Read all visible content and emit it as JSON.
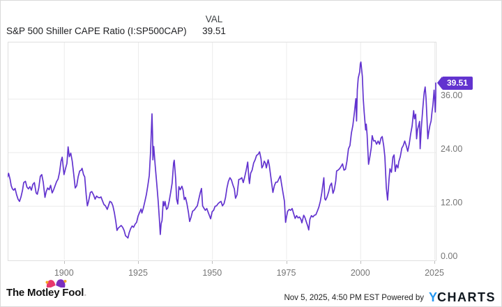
{
  "header": {
    "title": "S&P 500 Shiller CAPE Ratio (I:SP500CAP)",
    "val_label": "VAL",
    "val_value": "39.51"
  },
  "chart_data": {
    "type": "line",
    "title": "S&P 500 Shiller CAPE Ratio",
    "series_name": "I:SP500CAP",
    "line_color": "#6233cf",
    "grid": true,
    "legend_position": "none",
    "xlim": [
      1881,
      2025.9
    ],
    "ylim": [
      0,
      48.8
    ],
    "x_tick_labels": [
      "1900",
      "1925",
      "1950",
      "1975",
      "2000",
      "2025"
    ],
    "x_tick_values": [
      1900,
      1925,
      1950,
      1975,
      2000,
      2025
    ],
    "y_tick_labels": [
      "0.00",
      "12.00",
      "24.00",
      "36.00"
    ],
    "y_tick_values": [
      0,
      12,
      24,
      36
    ],
    "last_value_label": "39.51",
    "last_value": 39.51,
    "points": [
      [
        1881,
        18.5
      ],
      [
        1881.3,
        19.3
      ],
      [
        1881.8,
        18
      ],
      [
        1882.2,
        16.5
      ],
      [
        1882.6,
        15.8
      ],
      [
        1883,
        15.5
      ],
      [
        1883.5,
        15.9
      ],
      [
        1884,
        14.5
      ],
      [
        1884.5,
        13.5
      ],
      [
        1885,
        13
      ],
      [
        1885.5,
        14
      ],
      [
        1886,
        15.5
      ],
      [
        1886.4,
        17.2
      ],
      [
        1887,
        17.5
      ],
      [
        1887.5,
        16.2
      ],
      [
        1888,
        15.8
      ],
      [
        1888.5,
        16.3
      ],
      [
        1889,
        15.5
      ],
      [
        1889.5,
        16.8
      ],
      [
        1890,
        17.2
      ],
      [
        1890.6,
        14.9
      ],
      [
        1891,
        14.6
      ],
      [
        1891.5,
        16
      ],
      [
        1892,
        18.6
      ],
      [
        1892.5,
        19
      ],
      [
        1893,
        17.3
      ],
      [
        1893.6,
        13.9
      ],
      [
        1894,
        15.2
      ],
      [
        1894.5,
        16
      ],
      [
        1895,
        15.6
      ],
      [
        1895.5,
        16.6
      ],
      [
        1896,
        14.9
      ],
      [
        1896.5,
        15.6
      ],
      [
        1897,
        16.5
      ],
      [
        1897.5,
        17.4
      ],
      [
        1898,
        18
      ],
      [
        1898.5,
        19.5
      ],
      [
        1899,
        22
      ],
      [
        1899.4,
        22.9
      ],
      [
        1900,
        19
      ],
      [
        1900.5,
        20.3
      ],
      [
        1901,
        21.5
      ],
      [
        1901.4,
        25.2
      ],
      [
        1901.8,
        23
      ],
      [
        1902.3,
        23.8
      ],
      [
        1902.8,
        22
      ],
      [
        1903.3,
        19
      ],
      [
        1903.8,
        16
      ],
      [
        1904.3,
        16.5
      ],
      [
        1904.8,
        18.5
      ],
      [
        1905.3,
        19.8
      ],
      [
        1905.8,
        20
      ],
      [
        1906.1,
        20.4
      ],
      [
        1906.6,
        19
      ],
      [
        1907,
        18.5
      ],
      [
        1907.5,
        14.5
      ],
      [
        1907.9,
        12
      ],
      [
        1908.3,
        13
      ],
      [
        1908.9,
        15
      ],
      [
        1909.4,
        15.2
      ],
      [
        1910,
        14.4
      ],
      [
        1910.5,
        13.5
      ],
      [
        1911,
        14.2
      ],
      [
        1911.5,
        13.9
      ],
      [
        1912,
        13.8
      ],
      [
        1912.5,
        14
      ],
      [
        1913,
        13.1
      ],
      [
        1913.5,
        12.3
      ],
      [
        1914,
        12
      ],
      [
        1914.6,
        11.2
      ],
      [
        1915,
        12
      ],
      [
        1915.5,
        13
      ],
      [
        1916,
        12.8
      ],
      [
        1916.5,
        12
      ],
      [
        1917,
        10.5
      ],
      [
        1917.5,
        8.5
      ],
      [
        1917.9,
        6.5
      ],
      [
        1918.3,
        7
      ],
      [
        1918.8,
        7.3
      ],
      [
        1919.3,
        7.6
      ],
      [
        1919.8,
        7.2
      ],
      [
        1920.3,
        6.5
      ],
      [
        1920.8,
        5.3
      ],
      [
        1921.3,
        5
      ],
      [
        1921.6,
        4.8
      ],
      [
        1922,
        6
      ],
      [
        1922.5,
        6.9
      ],
      [
        1923,
        7.5
      ],
      [
        1923.5,
        7.2
      ],
      [
        1924,
        7.9
      ],
      [
        1924.5,
        8.3
      ],
      [
        1925,
        9.7
      ],
      [
        1925.5,
        10.5
      ],
      [
        1926,
        11.3
      ],
      [
        1926.3,
        10.4
      ],
      [
        1926.8,
        11.5
      ],
      [
        1927.3,
        13
      ],
      [
        1927.8,
        14.5
      ],
      [
        1928.3,
        16.5
      ],
      [
        1928.8,
        18.8
      ],
      [
        1929.2,
        24
      ],
      [
        1929.7,
        32.6
      ],
      [
        1929.9,
        28
      ],
      [
        1930,
        22.3
      ],
      [
        1930.3,
        25.3
      ],
      [
        1930.8,
        21
      ],
      [
        1931.3,
        17
      ],
      [
        1931.8,
        13
      ],
      [
        1932.2,
        9
      ],
      [
        1932.5,
        5.6
      ],
      [
        1932.8,
        8
      ],
      [
        1933.1,
        8.7
      ],
      [
        1933.5,
        13
      ],
      [
        1933.8,
        12
      ],
      [
        1934.1,
        13
      ],
      [
        1934.6,
        11.2
      ],
      [
        1935,
        11.5
      ],
      [
        1935.5,
        13
      ],
      [
        1936,
        15
      ],
      [
        1936.5,
        17.1
      ],
      [
        1937,
        21.6
      ],
      [
        1937.2,
        22.2
      ],
      [
        1937.7,
        18
      ],
      [
        1938,
        13.5
      ],
      [
        1938.4,
        12.4
      ],
      [
        1938.8,
        16.3
      ],
      [
        1939.2,
        15.6
      ],
      [
        1939.8,
        16.4
      ],
      [
        1940.2,
        15.5
      ],
      [
        1940.6,
        13.4
      ],
      [
        1941,
        13.9
      ],
      [
        1941.5,
        12.5
      ],
      [
        1942,
        10.5
      ],
      [
        1942.4,
        8.5
      ],
      [
        1942.9,
        9.5
      ],
      [
        1943.4,
        10.8
      ],
      [
        1944,
        11.1
      ],
      [
        1944.5,
        11.6
      ],
      [
        1945,
        12
      ],
      [
        1945.5,
        13.5
      ],
      [
        1946,
        15
      ],
      [
        1946.4,
        15.9
      ],
      [
        1946.8,
        12
      ],
      [
        1947.2,
        11.5
      ],
      [
        1947.7,
        11
      ],
      [
        1948.2,
        11.4
      ],
      [
        1948.7,
        10.5
      ],
      [
        1949.2,
        9.6
      ],
      [
        1949.5,
        9.1
      ],
      [
        1950,
        10.7
      ],
      [
        1950.5,
        11
      ],
      [
        1951,
        11.9
      ],
      [
        1951.5,
        12
      ],
      [
        1952,
        12.5
      ],
      [
        1952.5,
        12.8
      ],
      [
        1953,
        13
      ],
      [
        1953.5,
        12
      ],
      [
        1954,
        12.5
      ],
      [
        1954.5,
        13.8
      ],
      [
        1955,
        16
      ],
      [
        1955.5,
        17.5
      ],
      [
        1956,
        18.3
      ],
      [
        1956.5,
        17.8
      ],
      [
        1957,
        16.7
      ],
      [
        1957.5,
        15.8
      ],
      [
        1957.9,
        13.7
      ],
      [
        1958.4,
        14.5
      ],
      [
        1959,
        17.9
      ],
      [
        1959.5,
        18
      ],
      [
        1960,
        18.3
      ],
      [
        1960.5,
        17.2
      ],
      [
        1961,
        18.5
      ],
      [
        1961.5,
        20
      ],
      [
        1962,
        21.8
      ],
      [
        1962.4,
        18
      ],
      [
        1962.6,
        17
      ],
      [
        1963,
        19.3
      ],
      [
        1963.5,
        20
      ],
      [
        1964,
        21.6
      ],
      [
        1964.5,
        22.3
      ],
      [
        1965,
        23.3
      ],
      [
        1965.5,
        23.5
      ],
      [
        1966,
        24.1
      ],
      [
        1966.5,
        22.5
      ],
      [
        1966.8,
        20.5
      ],
      [
        1967.2,
        21
      ],
      [
        1967.6,
        22
      ],
      [
        1968,
        21.5
      ],
      [
        1968.3,
        20.5
      ],
      [
        1968.9,
        22.3
      ],
      [
        1969.3,
        21
      ],
      [
        1969.8,
        18.5
      ],
      [
        1970.2,
        16.5
      ],
      [
        1970.5,
        15
      ],
      [
        1971,
        16.5
      ],
      [
        1971.5,
        17.3
      ],
      [
        1972,
        17.3
      ],
      [
        1972.5,
        18
      ],
      [
        1973,
        18.7
      ],
      [
        1973.4,
        17
      ],
      [
        1973.9,
        15
      ],
      [
        1974.4,
        13
      ],
      [
        1974.8,
        8.3
      ],
      [
        1975.1,
        9.5
      ],
      [
        1975.5,
        10.8
      ],
      [
        1976,
        11.2
      ],
      [
        1976.5,
        11
      ],
      [
        1977,
        11.4
      ],
      [
        1977.5,
        10.3
      ],
      [
        1978,
        9.2
      ],
      [
        1978.5,
        9.8
      ],
      [
        1979,
        9.3
      ],
      [
        1979.5,
        9.5
      ],
      [
        1980,
        8.9
      ],
      [
        1980.3,
        8.2
      ],
      [
        1980.9,
        9.9
      ],
      [
        1981.3,
        9.4
      ],
      [
        1981.8,
        8.4
      ],
      [
        1982.3,
        7.4
      ],
      [
        1982.6,
        6.6
      ],
      [
        1983,
        9
      ],
      [
        1983.5,
        9.8
      ],
      [
        1984,
        9.5
      ],
      [
        1984.5,
        9.9
      ],
      [
        1985,
        10
      ],
      [
        1985.5,
        10.8
      ],
      [
        1986,
        11.7
      ],
      [
        1986.5,
        13
      ],
      [
        1987,
        14.9
      ],
      [
        1987.7,
        18.3
      ],
      [
        1988,
        13.6
      ],
      [
        1988.3,
        13.3
      ],
      [
        1988.8,
        14
      ],
      [
        1989.3,
        15.1
      ],
      [
        1989.8,
        16.5
      ],
      [
        1990.3,
        17.1
      ],
      [
        1990.8,
        14.8
      ],
      [
        1991.2,
        15.6
      ],
      [
        1991.7,
        17.5
      ],
      [
        1992,
        19.8
      ],
      [
        1992.5,
        20
      ],
      [
        1993,
        20.3
      ],
      [
        1993.5,
        20.8
      ],
      [
        1994,
        21.4
      ],
      [
        1994.5,
        20
      ],
      [
        1995,
        20.2
      ],
      [
        1995.5,
        22
      ],
      [
        1996,
        24.8
      ],
      [
        1996.5,
        25.5
      ],
      [
        1997,
        28.3
      ],
      [
        1997.5,
        30
      ],
      [
        1998,
        32.9
      ],
      [
        1998.5,
        36
      ],
      [
        1998.75,
        31
      ],
      [
        1999,
        38
      ],
      [
        1999.3,
        40.6
      ],
      [
        1999.8,
        42
      ],
      [
        2000,
        43.8
      ],
      [
        2000.2,
        44.2
      ],
      [
        2000.7,
        41
      ],
      [
        2001,
        36
      ],
      [
        2001.3,
        33
      ],
      [
        2001.8,
        29
      ],
      [
        2002,
        30.3
      ],
      [
        2002.3,
        28
      ],
      [
        2002.8,
        21.3
      ],
      [
        2003.2,
        22.9
      ],
      [
        2003.7,
        25
      ],
      [
        2004,
        27.7
      ],
      [
        2004.5,
        26.5
      ],
      [
        2005,
        26.6
      ],
      [
        2005.5,
        25.8
      ],
      [
        2006,
        26.5
      ],
      [
        2006.5,
        25.8
      ],
      [
        2007,
        27.2
      ],
      [
        2007.4,
        27.5
      ],
      [
        2007.9,
        25.5
      ],
      [
        2008.3,
        23
      ],
      [
        2008.8,
        16
      ],
      [
        2009.2,
        13.3
      ],
      [
        2009.7,
        18
      ],
      [
        2010,
        20.3
      ],
      [
        2010.5,
        19.5
      ],
      [
        2011,
        22.9
      ],
      [
        2011.4,
        23.4
      ],
      [
        2011.8,
        19.7
      ],
      [
        2012.2,
        21.2
      ],
      [
        2012.7,
        20.5
      ],
      [
        2013,
        21.9
      ],
      [
        2013.5,
        23
      ],
      [
        2014,
        24.9
      ],
      [
        2014.5,
        25.5
      ],
      [
        2015,
        26.5
      ],
      [
        2015.5,
        25.5
      ],
      [
        2016,
        24.2
      ],
      [
        2016.5,
        25.8
      ],
      [
        2017,
        28.1
      ],
      [
        2017.5,
        29.9
      ],
      [
        2018,
        33.3
      ],
      [
        2018.3,
        31.5
      ],
      [
        2018.7,
        32.5
      ],
      [
        2019,
        27
      ],
      [
        2019.3,
        29
      ],
      [
        2019.8,
        30.3
      ],
      [
        2020,
        30.9
      ],
      [
        2020.2,
        24.8
      ],
      [
        2020.6,
        29.5
      ],
      [
        2021,
        33
      ],
      [
        2021.3,
        35.5
      ],
      [
        2021.6,
        37.5
      ],
      [
        2021.9,
        38.6
      ],
      [
        2022.2,
        36
      ],
      [
        2022.5,
        31.5
      ],
      [
        2022.8,
        27
      ],
      [
        2023.1,
        28.5
      ],
      [
        2023.5,
        30
      ],
      [
        2023.9,
        31
      ],
      [
        2024.2,
        33
      ],
      [
        2024.5,
        34.5
      ],
      [
        2024.9,
        37.9
      ],
      [
        2025.1,
        36
      ],
      [
        2025.3,
        33
      ],
      [
        2025.55,
        36.5
      ],
      [
        2025.85,
        39.51
      ]
    ]
  },
  "footer": {
    "brand_text": "The Motley Fool",
    "brand_period": ".",
    "timestamp": "Nov 5, 2025, 4:50 PM EST",
    "powered_by": "Powered by",
    "ycharts_y": "Y",
    "ycharts_rest": "CHARTS",
    "jester_hat_icon": "motley-fool-jester-hat",
    "colors": {
      "line": "#6233cf",
      "badge": "#6233cf",
      "ycharts_blue": "#2496f0",
      "hat_pink": "#e8386d",
      "hat_purple": "#7b2fbe",
      "hat_gold": "#f5a623"
    }
  }
}
